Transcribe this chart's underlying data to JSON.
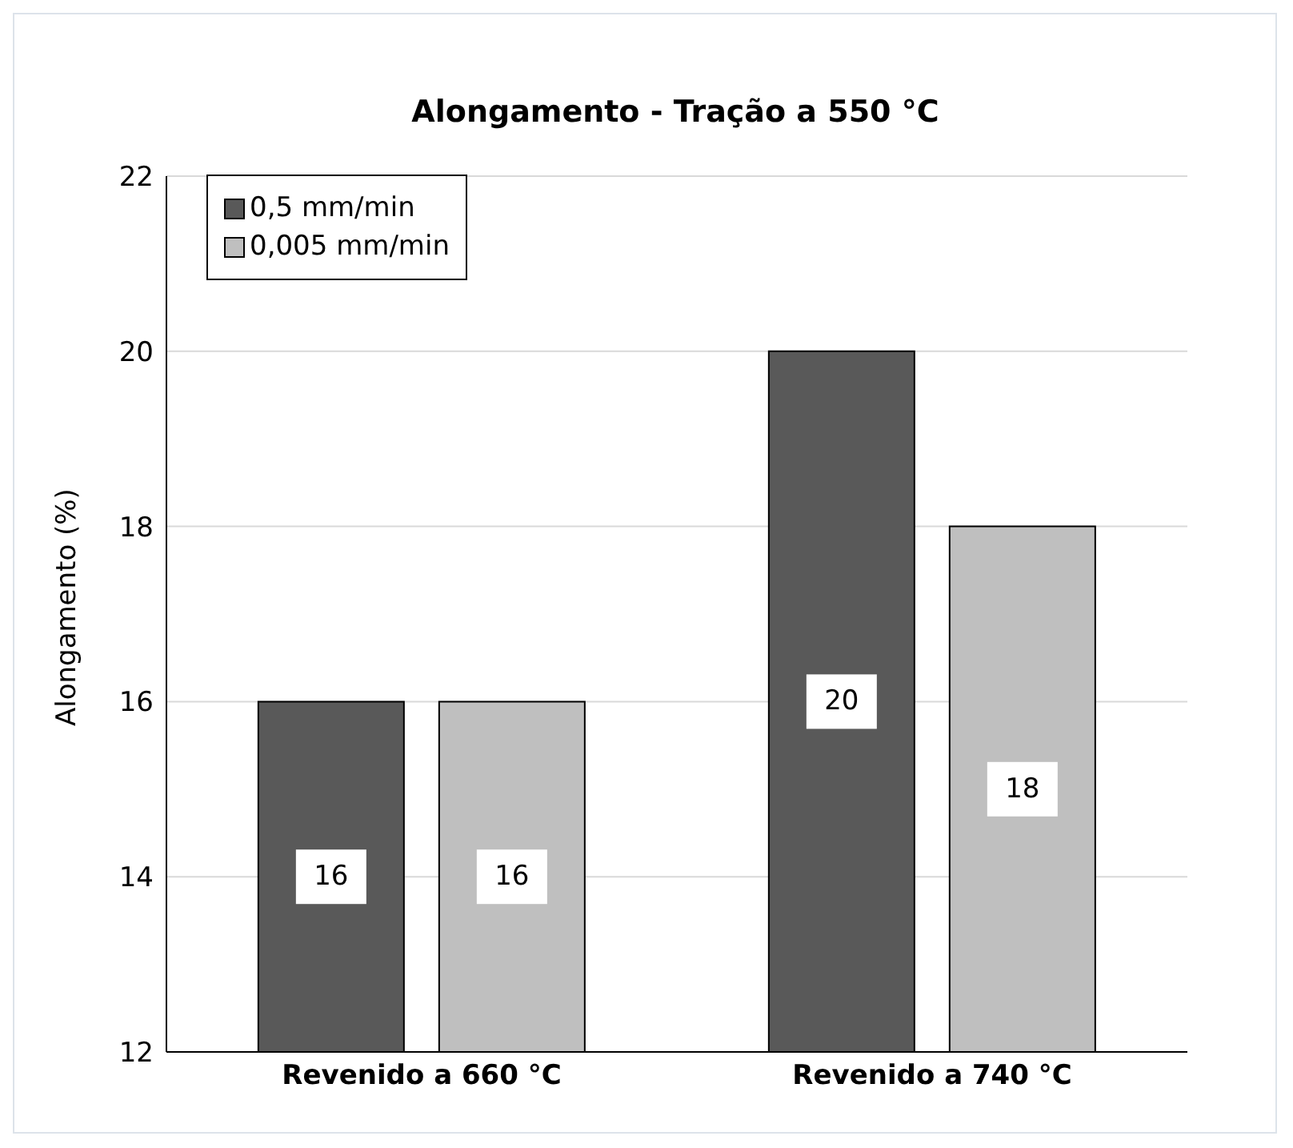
{
  "chart_data": {
    "type": "bar",
    "title": "Alongamento - Tração a 550 °C",
    "ylabel": "Alongamento (%)",
    "categories": [
      "Revenido a 660 °C",
      "Revenido a 740 °C"
    ],
    "series": [
      {
        "name": "0,5 mm/min",
        "color": "#595959",
        "values": [
          16,
          20
        ]
      },
      {
        "name": "0,005 mm/min",
        "color": "#bfbfbf",
        "values": [
          16,
          18
        ]
      }
    ],
    "ylim": [
      12,
      22
    ],
    "yticks": [
      12,
      14,
      16,
      18,
      20,
      22
    ],
    "grid": "y",
    "legend": "top left",
    "data_labels": true
  }
}
